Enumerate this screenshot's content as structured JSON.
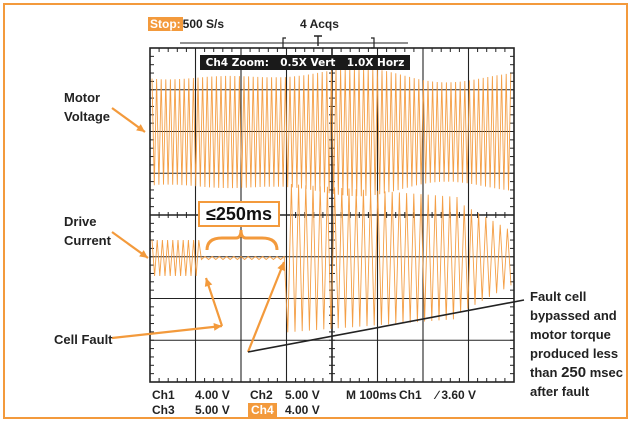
{
  "header": {
    "stop_label": "Stop:",
    "sample_rate": "500 S/s",
    "acquisitions": "4 Acqs"
  },
  "zoom_bar": {
    "label": "Ch4 Zoom:",
    "vert": "0.5X Vert",
    "horz": "1.0X Horz"
  },
  "labels": {
    "motor_voltage": [
      "Motor",
      "Voltage"
    ],
    "drive_current": [
      "Drive",
      "Current"
    ],
    "cell_fault": "Cell Fault",
    "fault_cell_note": [
      "Fault cell",
      "bypassed and",
      "motor torque",
      "produced less"
    ],
    "than": "than",
    "than_value": "250",
    "msec": "msec",
    "after_fault": "after fault",
    "callout": "≤250ms"
  },
  "status": {
    "ch1_label": "Ch1",
    "ch1_value": "4.00 V",
    "ch2_label": "Ch2",
    "ch2_value": "5.00 V",
    "ch3_label": "Ch3",
    "ch3_value": "5.00 V",
    "ch4_label": "Ch4",
    "ch4_value": "4.00 V",
    "timebase": "M 100ms",
    "trigger_ch": "Ch1",
    "trigger_level": "∕ 3.60 V"
  },
  "colors": {
    "accent": "#f39a3c",
    "trace": "#f39a3c",
    "grid": "#222222",
    "zoom_bar_bg": "#1a1a1a"
  }
}
